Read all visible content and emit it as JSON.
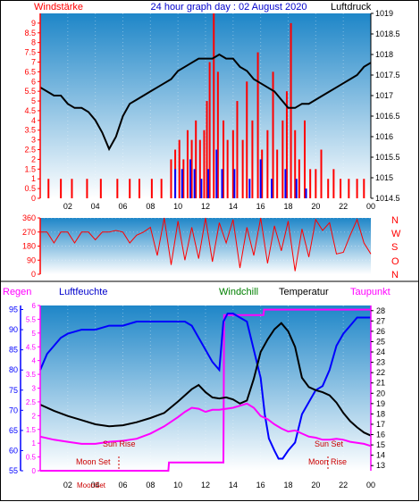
{
  "colors": {
    "frame": "#ffffff",
    "panel_top": "#1e86c8",
    "panel_bottom": "#ffffff",
    "wind": "#ff0000",
    "gust": "#0000ff",
    "pressure": "#000000",
    "direction": "#ff0000",
    "humidity": "#0000ff",
    "temperature": "#000000",
    "dewpoint": "#ff00ff",
    "windchill": "#008000",
    "rain": "#ff00ff",
    "axis_left": "#ff0000",
    "axis_rain": "#0000ff"
  },
  "header": {
    "left": "Windstärke",
    "center": "24 hour graph day : 02 August 2020",
    "right": "Luftdruck"
  },
  "direction_letters": [
    "N",
    "W",
    "S",
    "O",
    "N"
  ],
  "bottom_header": {
    "rain": "Regen",
    "humidity": "Luftfeuchte",
    "windchill": "Windchill",
    "temperature": "Temperatur",
    "dewpoint": "Taupunkt"
  },
  "annotations": {
    "moon_set_1": "Moon Set",
    "sun_rise": "Sun Rise",
    "moon_set_2": "MoonSet",
    "sun_set": "Sun Set",
    "moon_rise": "Moon Rise"
  },
  "chart_data": [
    {
      "type": "line",
      "name": "wind-and-pressure",
      "x_range": [
        0,
        24
      ],
      "x_ticks": [
        "02",
        "04",
        "06",
        "08",
        "10",
        "12",
        "14",
        "16",
        "18",
        "20",
        "22",
        "00"
      ],
      "y_left": {
        "label": "Windstärke",
        "range": [
          0,
          9.5
        ],
        "ticks": [
          "0",
          "0.5",
          "1",
          "1.5",
          "2",
          "2.5",
          "3",
          "3.5",
          "4",
          "4.5",
          "5",
          "5.5",
          "6",
          "6.5",
          "7",
          "7.5",
          "8",
          "8.5",
          "9"
        ]
      },
      "y_right": {
        "label": "Luftdruck",
        "range": [
          1014.5,
          1019
        ],
        "ticks": [
          "1014.5",
          "1015",
          "1015.5",
          "1016",
          "1016.5",
          "1017",
          "1017.5",
          "1018",
          "1018.5",
          "1019"
        ]
      },
      "pressure": {
        "x": [
          0,
          0.5,
          1,
          1.5,
          2,
          2.5,
          3,
          3.5,
          4,
          4.5,
          5,
          5.5,
          6,
          6.5,
          7,
          7.5,
          8,
          8.5,
          9,
          9.5,
          10,
          10.5,
          11,
          11.5,
          12,
          12.5,
          13,
          13.5,
          14,
          14.5,
          15,
          15.5,
          16,
          16.5,
          17,
          17.5,
          18,
          18.5,
          19,
          19.5,
          20,
          20.5,
          21,
          21.5,
          22,
          22.5,
          23,
          23.5,
          24
        ],
        "y": [
          1017.2,
          1017.1,
          1017.0,
          1017.0,
          1016.8,
          1016.7,
          1016.7,
          1016.6,
          1016.4,
          1016.1,
          1015.7,
          1016.0,
          1016.5,
          1016.8,
          1016.9,
          1017.0,
          1017.1,
          1017.2,
          1017.3,
          1017.4,
          1017.6,
          1017.7,
          1017.8,
          1017.9,
          1017.9,
          1017.9,
          1018.0,
          1017.9,
          1017.9,
          1017.7,
          1017.6,
          1017.4,
          1017.3,
          1017.2,
          1017.1,
          1016.9,
          1016.7,
          1016.7,
          1016.8,
          1016.8,
          1016.9,
          1017.0,
          1017.1,
          1017.2,
          1017.3,
          1017.4,
          1017.5,
          1017.7,
          1017.8
        ]
      },
      "wind_bars": {
        "x": [
          0.6,
          1.5,
          2.3,
          3.4,
          4.4,
          5.6,
          6.5,
          7.2,
          8.1,
          8.8,
          9.5,
          9.8,
          10.1,
          10.4,
          10.7,
          11.0,
          11.3,
          11.6,
          11.9,
          12.1,
          12.3,
          12.6,
          12.9,
          13.3,
          13.6,
          14.0,
          14.3,
          14.7,
          15.0,
          15.4,
          15.8,
          16.1,
          16.5,
          16.9,
          17.2,
          17.6,
          17.9,
          18.2,
          18.5,
          18.8,
          19.2,
          19.6,
          20.0,
          20.4,
          20.9,
          21.3,
          21.8,
          22.4,
          23.0,
          23.5
        ],
        "y": [
          1.0,
          1.0,
          1.0,
          1.0,
          1.0,
          1.0,
          1.0,
          1.0,
          1.0,
          1.0,
          2.0,
          2.5,
          3.0,
          2.0,
          3.5,
          3.0,
          4.0,
          3.0,
          3.5,
          5.0,
          7.0,
          9.5,
          6.5,
          4.0,
          3.0,
          3.5,
          5.0,
          3.0,
          6.0,
          4.0,
          7.5,
          2.5,
          3.5,
          6.5,
          2.5,
          4.0,
          5.5,
          9.0,
          3.5,
          2.0,
          4.0,
          1.5,
          1.5,
          2.5,
          1.0,
          1.5,
          1.0,
          1.0,
          1.0,
          1.0
        ]
      },
      "gust_bars": {
        "x": [
          9.8,
          10.3,
          10.9,
          11.2,
          11.7,
          12.2,
          12.8,
          13.2,
          14.1,
          15.2,
          16.0,
          16.8,
          17.8,
          18.6,
          19.3
        ],
        "y": [
          1.5,
          1.5,
          2.0,
          1.5,
          1.0,
          1.5,
          2.5,
          1.5,
          1.5,
          1.0,
          2.0,
          1.0,
          1.5,
          1.0,
          0.5
        ]
      }
    },
    {
      "type": "line",
      "name": "wind-direction",
      "x_range": [
        0,
        24
      ],
      "y_range": [
        0,
        360
      ],
      "y_ticks": [
        "0",
        "90",
        "180",
        "270",
        "360"
      ],
      "x": [
        0,
        0.5,
        1,
        1.5,
        2,
        2.5,
        3,
        3.5,
        4,
        4.5,
        5,
        5.5,
        6,
        6.5,
        7,
        7.5,
        8,
        8.5,
        9,
        9.5,
        10,
        10.5,
        11,
        11.5,
        12,
        12.5,
        13,
        13.5,
        14,
        14.5,
        15,
        15.5,
        16,
        16.5,
        17,
        17.5,
        18,
        18.5,
        19,
        19.5,
        20,
        20.5,
        21,
        21.5,
        22,
        22.5,
        23,
        23.5,
        24
      ],
      "y": [
        270,
        270,
        200,
        270,
        270,
        200,
        270,
        270,
        220,
        270,
        270,
        280,
        270,
        200,
        250,
        270,
        300,
        120,
        360,
        60,
        340,
        90,
        300,
        100,
        360,
        80,
        330,
        200,
        350,
        40,
        300,
        120,
        360,
        70,
        310,
        150,
        340,
        20,
        290,
        110,
        350,
        280,
        330,
        130,
        140,
        250,
        350,
        200,
        130
      ]
    },
    {
      "type": "line",
      "name": "humidity-temperature",
      "x_range": [
        0,
        24
      ],
      "x_ticks": [
        "02",
        "04",
        "06",
        "08",
        "10",
        "12",
        "14",
        "16",
        "18",
        "20",
        "22",
        "00"
      ],
      "y_left": {
        "label": "Luftfeuchte",
        "range": [
          55,
          96
        ],
        "ticks": [
          "55",
          "60",
          "65",
          "70",
          "75",
          "80",
          "85",
          "90",
          "95"
        ]
      },
      "y_rain": {
        "label": "Regen",
        "range": [
          0,
          6
        ],
        "ticks": [
          "0",
          "0.5",
          "1",
          "1.5",
          "2",
          "2.5",
          "3",
          "3.5",
          "4",
          "4.5",
          "5",
          "5.5",
          "6"
        ]
      },
      "y_right": {
        "label": "Temperatur",
        "range": [
          12.5,
          28.5
        ],
        "ticks": [
          "13",
          "14",
          "15",
          "16",
          "17",
          "18",
          "19",
          "20",
          "21",
          "22",
          "23",
          "24",
          "25",
          "26",
          "27",
          "28"
        ]
      },
      "series": [
        {
          "name": "Luftfeuchte",
          "x": [
            0,
            0.5,
            1,
            1.5,
            2,
            3,
            4,
            5,
            6,
            7,
            8,
            9,
            10,
            10.5,
            11,
            11.5,
            12,
            12.5,
            13,
            13.3,
            13.6,
            14,
            14.5,
            15,
            15.5,
            16,
            16.3,
            16.6,
            17,
            17.3,
            17.6,
            18,
            18.5,
            19,
            19.5,
            20,
            20.5,
            21,
            21.5,
            22,
            22.5,
            23,
            23.5,
            24
          ],
          "y": [
            80,
            84,
            86,
            88,
            89,
            90,
            90,
            91,
            91,
            92,
            92,
            92,
            92,
            92,
            91,
            88,
            85,
            82,
            80,
            92,
            94,
            94,
            93,
            92,
            85,
            78,
            69,
            63,
            60,
            58,
            58,
            60,
            62,
            69,
            72,
            75,
            76,
            80,
            86,
            89,
            91,
            93,
            93,
            93
          ]
        },
        {
          "name": "Temperatur",
          "x": [
            0,
            1,
            2,
            3,
            4,
            5,
            6,
            7,
            8,
            9,
            10,
            11,
            11.5,
            12,
            12.5,
            13,
            13.5,
            14,
            14.5,
            15,
            15.5,
            16,
            16.5,
            17,
            17.5,
            18,
            18.5,
            19,
            19.5,
            20,
            20.5,
            21,
            21.5,
            22,
            22.5,
            23,
            23.5,
            24
          ],
          "y": [
            18.9,
            18.3,
            17.8,
            17.4,
            17.0,
            16.8,
            16.9,
            17.2,
            17.6,
            18.1,
            19.2,
            20.4,
            20.8,
            20.1,
            19.6,
            19.5,
            19.6,
            19.4,
            19.0,
            19.3,
            21.4,
            24.0,
            25.2,
            26.2,
            26.8,
            26.0,
            24.5,
            21.5,
            20.6,
            20.3,
            20.1,
            19.8,
            19.1,
            18.1,
            17.3,
            16.7,
            16.2,
            15.9
          ]
        },
        {
          "name": "Taupunkt",
          "x": [
            0,
            1,
            2,
            3,
            4,
            5,
            6,
            7,
            8,
            9,
            10,
            10.5,
            11,
            11.5,
            12,
            12.5,
            13,
            13.5,
            14,
            14.5,
            15,
            15.5,
            16,
            16.5,
            17,
            17.5,
            18,
            18.5,
            19,
            19.5,
            20,
            20.5,
            21,
            21.5,
            22,
            22.5,
            23,
            23.5,
            24
          ],
          "y": [
            15.8,
            15.5,
            15.3,
            15.1,
            15.1,
            15.3,
            15.4,
            15.6,
            16.1,
            16.8,
            17.7,
            18.2,
            18.6,
            18.5,
            18.2,
            18.4,
            18.4,
            18.5,
            18.6,
            18.8,
            19.0,
            18.6,
            17.8,
            17.5,
            17.0,
            16.6,
            16.3,
            16.4,
            16.1,
            15.8,
            15.7,
            15.5,
            15.5,
            15.6,
            15.5,
            15.3,
            15.2,
            15.1,
            14.9
          ]
        },
        {
          "name": "Regen",
          "x": [
            0,
            9.3,
            9.35,
            13.3,
            13.35,
            16.2,
            16.25,
            24
          ],
          "y": [
            0,
            0,
            0.3,
            0.3,
            5.65,
            5.65,
            5.85,
            5.85
          ]
        }
      ]
    }
  ]
}
